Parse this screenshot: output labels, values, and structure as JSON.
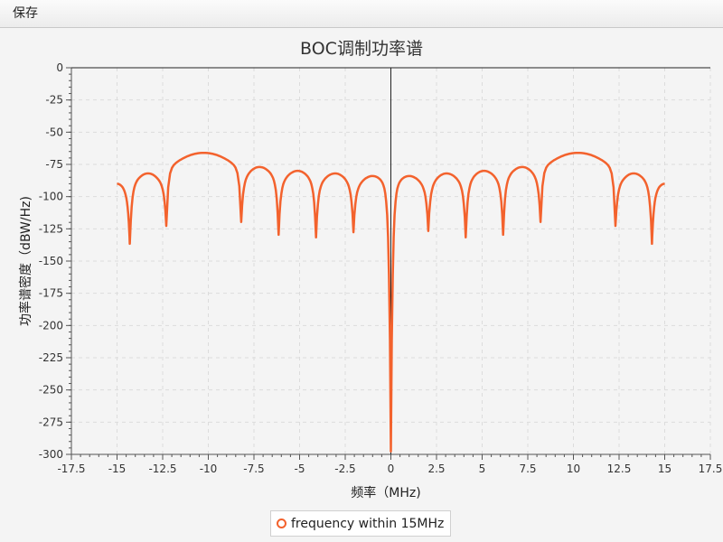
{
  "menu": {
    "save_label": "保存"
  },
  "colors": {
    "series": "#f3622d",
    "grid": "#dcdcdc",
    "axis": "#555555",
    "zero_line": "#222222"
  },
  "chart_data": {
    "type": "line",
    "title": "BOC调制功率谱",
    "xlabel": "频率（MHz)",
    "ylabel": "功率谱密度（dBW/Hz)",
    "xlim": [
      -17.5,
      17.5
    ],
    "ylim": [
      -300,
      0
    ],
    "x_ticks": [
      -17.5,
      -15,
      -12.5,
      -10,
      -7.5,
      -5,
      -2.5,
      0,
      2.5,
      5,
      7.5,
      10,
      12.5,
      15,
      17.5
    ],
    "y_ticks": [
      0,
      -25,
      -50,
      -75,
      -100,
      -125,
      -150,
      -175,
      -200,
      -225,
      -250,
      -275,
      -300
    ],
    "x_tick_labels": [
      "-17.5",
      "-15",
      "-12.5",
      "-10",
      "-7.5",
      "-5",
      "-2.5",
      "0",
      "2.5",
      "5",
      "7.5",
      "10",
      "12.5",
      "15",
      "17.5"
    ],
    "y_tick_labels": [
      "0",
      "-25",
      "-50",
      "-75",
      "-100",
      "-125",
      "-150",
      "-175",
      "-200",
      "-225",
      "-250",
      "-275",
      "-300"
    ],
    "grid": true,
    "legend_position": "bottom-center",
    "series": [
      {
        "name": "frequency within 15MHz",
        "x_range": [
          -15,
          15
        ],
        "nulls": [
          -14.3,
          -12.3,
          -8.2,
          -6.15,
          -4.1,
          -2.05,
          0,
          2.05,
          4.1,
          6.15,
          8.2,
          12.3,
          14.3
        ],
        "null_depths": [
          -137,
          -123,
          -120,
          -130,
          -132,
          -128,
          -300,
          -127,
          -132,
          -130,
          -120,
          -123,
          -137
        ],
        "lobe_peaks": [
          {
            "x": -15,
            "y": -90
          },
          {
            "x": -13.3,
            "y": -82
          },
          {
            "x": -10.25,
            "y": -66
          },
          {
            "x": -7.2,
            "y": -77
          },
          {
            "x": -5.1,
            "y": -80
          },
          {
            "x": -3.05,
            "y": -82
          },
          {
            "x": -1.0,
            "y": -84
          },
          {
            "x": 1.0,
            "y": -84
          },
          {
            "x": 3.05,
            "y": -82
          },
          {
            "x": 5.1,
            "y": -80
          },
          {
            "x": 7.2,
            "y": -77
          },
          {
            "x": 10.25,
            "y": -66
          },
          {
            "x": 13.3,
            "y": -82
          },
          {
            "x": 15,
            "y": -90
          }
        ]
      }
    ]
  }
}
